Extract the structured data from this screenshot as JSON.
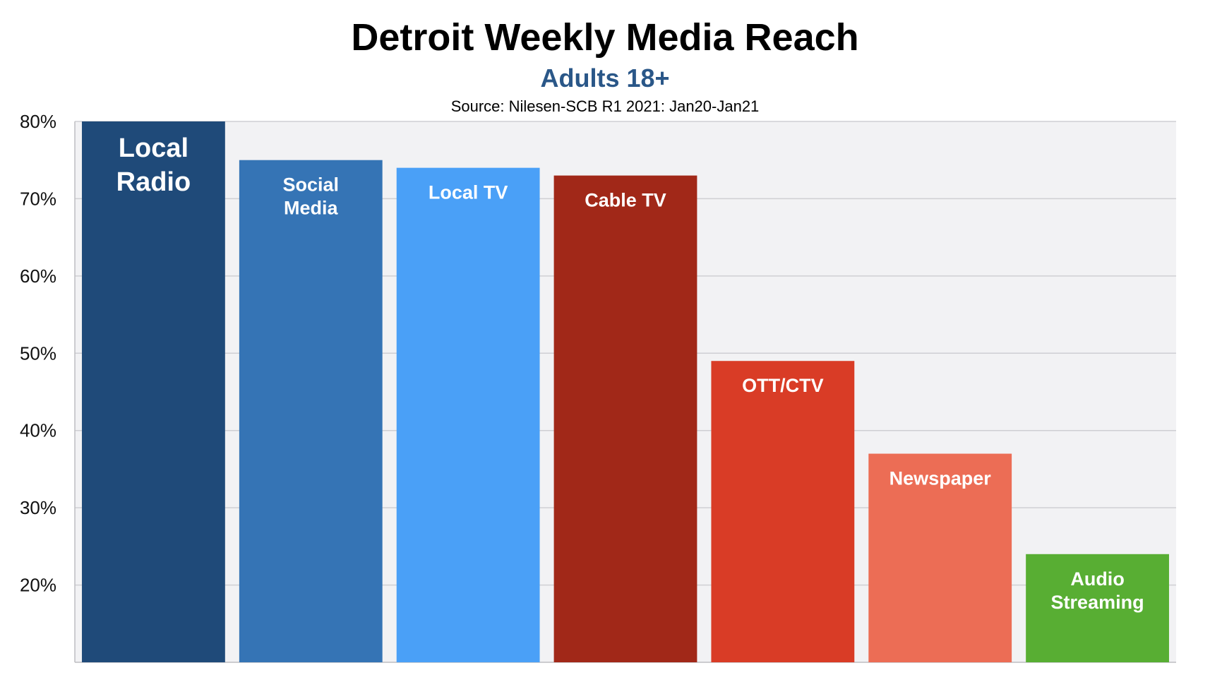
{
  "chart_data": {
    "type": "bar",
    "title": "Detroit Weekly Media Reach",
    "subtitle": "Adults 18+",
    "source": "Source: Nilesen-SCB R1 2021: Jan20-Jan21",
    "categories": [
      "Local Radio",
      "Social Media",
      "Local TV",
      "Cable TV",
      "OTT/CTV",
      "Newspaper",
      "Audio Streaming"
    ],
    "label_lines": [
      [
        "Local",
        "Radio"
      ],
      [
        "Social",
        "Media"
      ],
      [
        "Local TV"
      ],
      [
        "Cable TV"
      ],
      [
        "OTT/CTV"
      ],
      [
        "Newspaper"
      ],
      [
        "Audio",
        "Streaming"
      ]
    ],
    "values": [
      80,
      75,
      74,
      73,
      49,
      37,
      24
    ],
    "colors": [
      "#1f4a79",
      "#3574b5",
      "#4aa0f7",
      "#a12818",
      "#d93c26",
      "#ec6d55",
      "#58ae33"
    ],
    "yticks": [
      "80%",
      "70%",
      "60%",
      "50%",
      "40%",
      "30%",
      "20%"
    ],
    "ytick_values": [
      80,
      70,
      60,
      50,
      40,
      30,
      20
    ],
    "ylim": [
      10,
      80
    ],
    "grid": true,
    "xlabel": "",
    "ylabel": ""
  }
}
